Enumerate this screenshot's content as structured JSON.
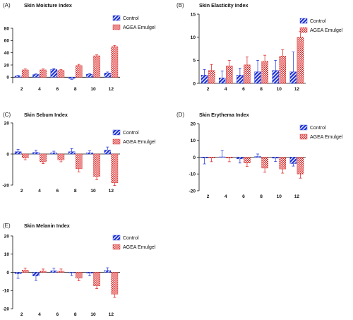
{
  "figure": {
    "legend": {
      "control": "Control",
      "agea": "AGEA Emulgel"
    },
    "colors": {
      "control": "#1a2fd6",
      "agea": "#d81b1b",
      "error_control": "#1a2fd6",
      "error_agea": "#d81b1b"
    }
  },
  "chart_data": [
    {
      "panel": "(A)",
      "type": "bar",
      "title": "Skin Moisture Index",
      "categories": [
        "2",
        "4",
        "6",
        "8",
        "10",
        "12"
      ],
      "ylim": [
        -10,
        80
      ],
      "yticks": [
        0,
        20,
        40,
        60,
        80
      ],
      "series": [
        {
          "name": "Control",
          "values": [
            2,
            4.5,
            13,
            -2,
            5,
            7
          ],
          "errors": [
            1,
            1,
            1.5,
            1.5,
            1,
            1.5
          ]
        },
        {
          "name": "AGEA Emulgel",
          "values": [
            12,
            12,
            11,
            19,
            35,
            50
          ],
          "errors": [
            1.5,
            1.5,
            1.5,
            2,
            1.5,
            2
          ]
        }
      ],
      "legend_position": "top-right"
    },
    {
      "panel": "(B)",
      "type": "bar",
      "title": "Skin Elasticity Index",
      "categories": [
        "2",
        "4",
        "6",
        "8",
        "10",
        "12"
      ],
      "ylim": [
        0,
        15
      ],
      "yticks": [
        0,
        5,
        10,
        15
      ],
      "series": [
        {
          "name": "Control",
          "values": [
            1.8,
            1.2,
            1.8,
            2.5,
            2.8,
            2.5
          ],
          "errors": [
            1.2,
            1.5,
            1.5,
            2.5,
            2.2,
            4.3
          ]
        },
        {
          "name": "AGEA Emulgel",
          "values": [
            2.8,
            3.8,
            4.0,
            4.8,
            5.9,
            10.0
          ],
          "errors": [
            1.3,
            1.2,
            1.7,
            1.3,
            1.4,
            1.2
          ]
        }
      ],
      "legend_position": "top-right"
    },
    {
      "panel": "(C)",
      "type": "bar",
      "title": "Skin Sebum Index",
      "categories": [
        "2",
        "4",
        "6",
        "8",
        "10",
        "12"
      ],
      "ylim": [
        -20,
        20
      ],
      "yticks": [
        -20,
        0,
        20
      ],
      "series": [
        {
          "name": "Control",
          "values": [
            1.5,
            1.0,
            0.8,
            1.5,
            0.8,
            2.5
          ],
          "errors": [
            1.5,
            1.5,
            1.0,
            2.0,
            1.2,
            2.0
          ]
        },
        {
          "name": "AGEA Emulgel",
          "values": [
            -2.5,
            -5.0,
            -3.8,
            -9.5,
            -14.5,
            -18.5
          ],
          "errors": [
            1.2,
            1.2,
            1.2,
            2.0,
            2.0,
            1.8
          ]
        }
      ],
      "legend_position": "top-right"
    },
    {
      "panel": "(D)",
      "type": "bar",
      "title": "Skin Erythema Index",
      "categories": [
        "2",
        "4",
        "6",
        "8",
        "10",
        "12"
      ],
      "ylim": [
        -20,
        20
      ],
      "yticks": [
        -20,
        -10,
        0,
        10,
        20
      ],
      "series": [
        {
          "name": "Control",
          "values": [
            -0.5,
            0.2,
            -1.0,
            0.4,
            -0.6,
            -3.8
          ],
          "errors": [
            3.5,
            3.8,
            2.5,
            1.5,
            2.0,
            1.5
          ]
        },
        {
          "name": "AGEA Emulgel",
          "values": [
            -0.5,
            -0.5,
            -3.5,
            -6.5,
            -7.0,
            -10.0
          ],
          "errors": [
            2.2,
            2.2,
            2.0,
            2.5,
            2.5,
            2.5
          ]
        }
      ],
      "legend_position": "top-right"
    },
    {
      "panel": "(E)",
      "type": "bar",
      "title": "Skin Melanin Index",
      "categories": [
        "2",
        "4",
        "6",
        "8",
        "10",
        "12"
      ],
      "ylim": [
        -20,
        20
      ],
      "yticks": [
        -20,
        -10,
        0,
        10,
        20
      ],
      "series": [
        {
          "name": "Control",
          "values": [
            -0.8,
            -2.0,
            0.8,
            -0.3,
            -0.5,
            1.0
          ],
          "errors": [
            2.5,
            2.5,
            1.5,
            1.5,
            1.5,
            1.5
          ]
        },
        {
          "name": "AGEA Emulgel",
          "values": [
            1.2,
            0.6,
            0.6,
            -3.2,
            -7.5,
            -12.0
          ],
          "errors": [
            1.2,
            1.2,
            1.2,
            1.5,
            1.5,
            1.8
          ]
        }
      ],
      "legend_position": "top-right"
    }
  ]
}
